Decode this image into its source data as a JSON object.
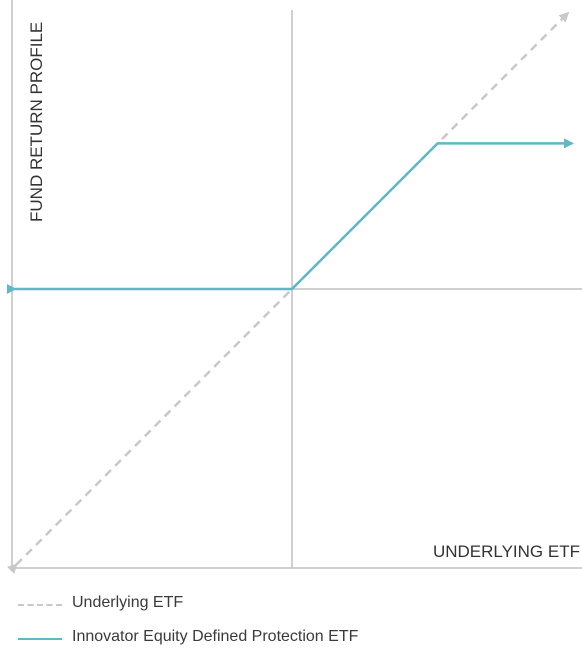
{
  "chart_data": {
    "type": "line",
    "ylabel": "FUND RETURN PROFILE",
    "xlabel": "UNDERLYING ETF",
    "grid": false,
    "legend_position": "bottom-left",
    "series": [
      {
        "name": "Underlying ETF",
        "style": "dashed",
        "color": "#c8c8c8",
        "x": [
          -1,
          1
        ],
        "y": [
          -1,
          1
        ]
      },
      {
        "name": "Innovator Equity Defined Protection ETF",
        "style": "solid",
        "color": "#5fb8c4",
        "x": [
          -1,
          0,
          0.52,
          1
        ],
        "y": [
          0,
          0,
          0.52,
          0.52
        ]
      }
    ]
  }
}
